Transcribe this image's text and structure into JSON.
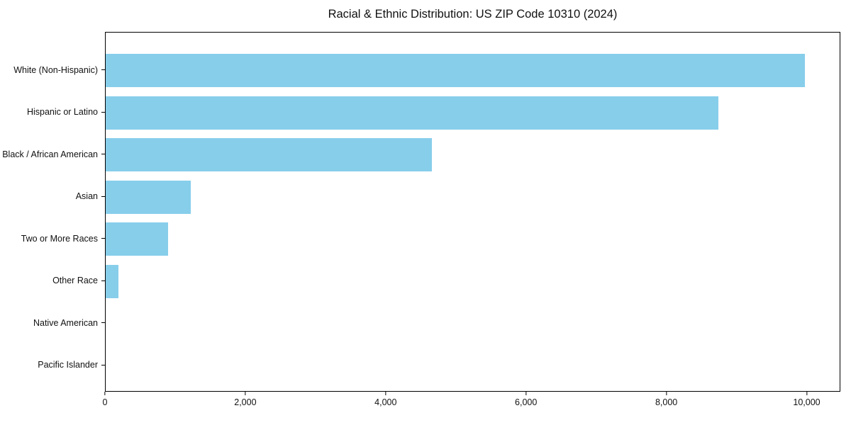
{
  "title": "Racial & Ethnic Distribution: US ZIP Code 10310 (2024)",
  "colors": {
    "bar": "#87CEEB",
    "axis": "#000000",
    "background": "#ffffff",
    "text": "#111111"
  },
  "chart_data": {
    "type": "bar",
    "orientation": "horizontal",
    "title": "Racial & Ethnic Distribution: US ZIP Code 10310 (2024)",
    "categories": [
      "White (Non-Hispanic)",
      "Hispanic or Latino",
      "Black / African American",
      "Asian",
      "Two or More Races",
      "Other Race",
      "Native American",
      "Pacific Islander"
    ],
    "values": [
      9980,
      8750,
      4660,
      1220,
      890,
      180,
      0,
      0
    ],
    "bar_color": "#87CEEB",
    "xlabel": "",
    "ylabel": "",
    "xlim": [
      0,
      10480
    ],
    "x_ticks": [
      0,
      2000,
      4000,
      6000,
      8000,
      10000
    ],
    "x_tick_labels": [
      "0",
      "2,000",
      "4,000",
      "6,000",
      "8,000",
      "10,000"
    ],
    "grid": false,
    "legend": null
  }
}
